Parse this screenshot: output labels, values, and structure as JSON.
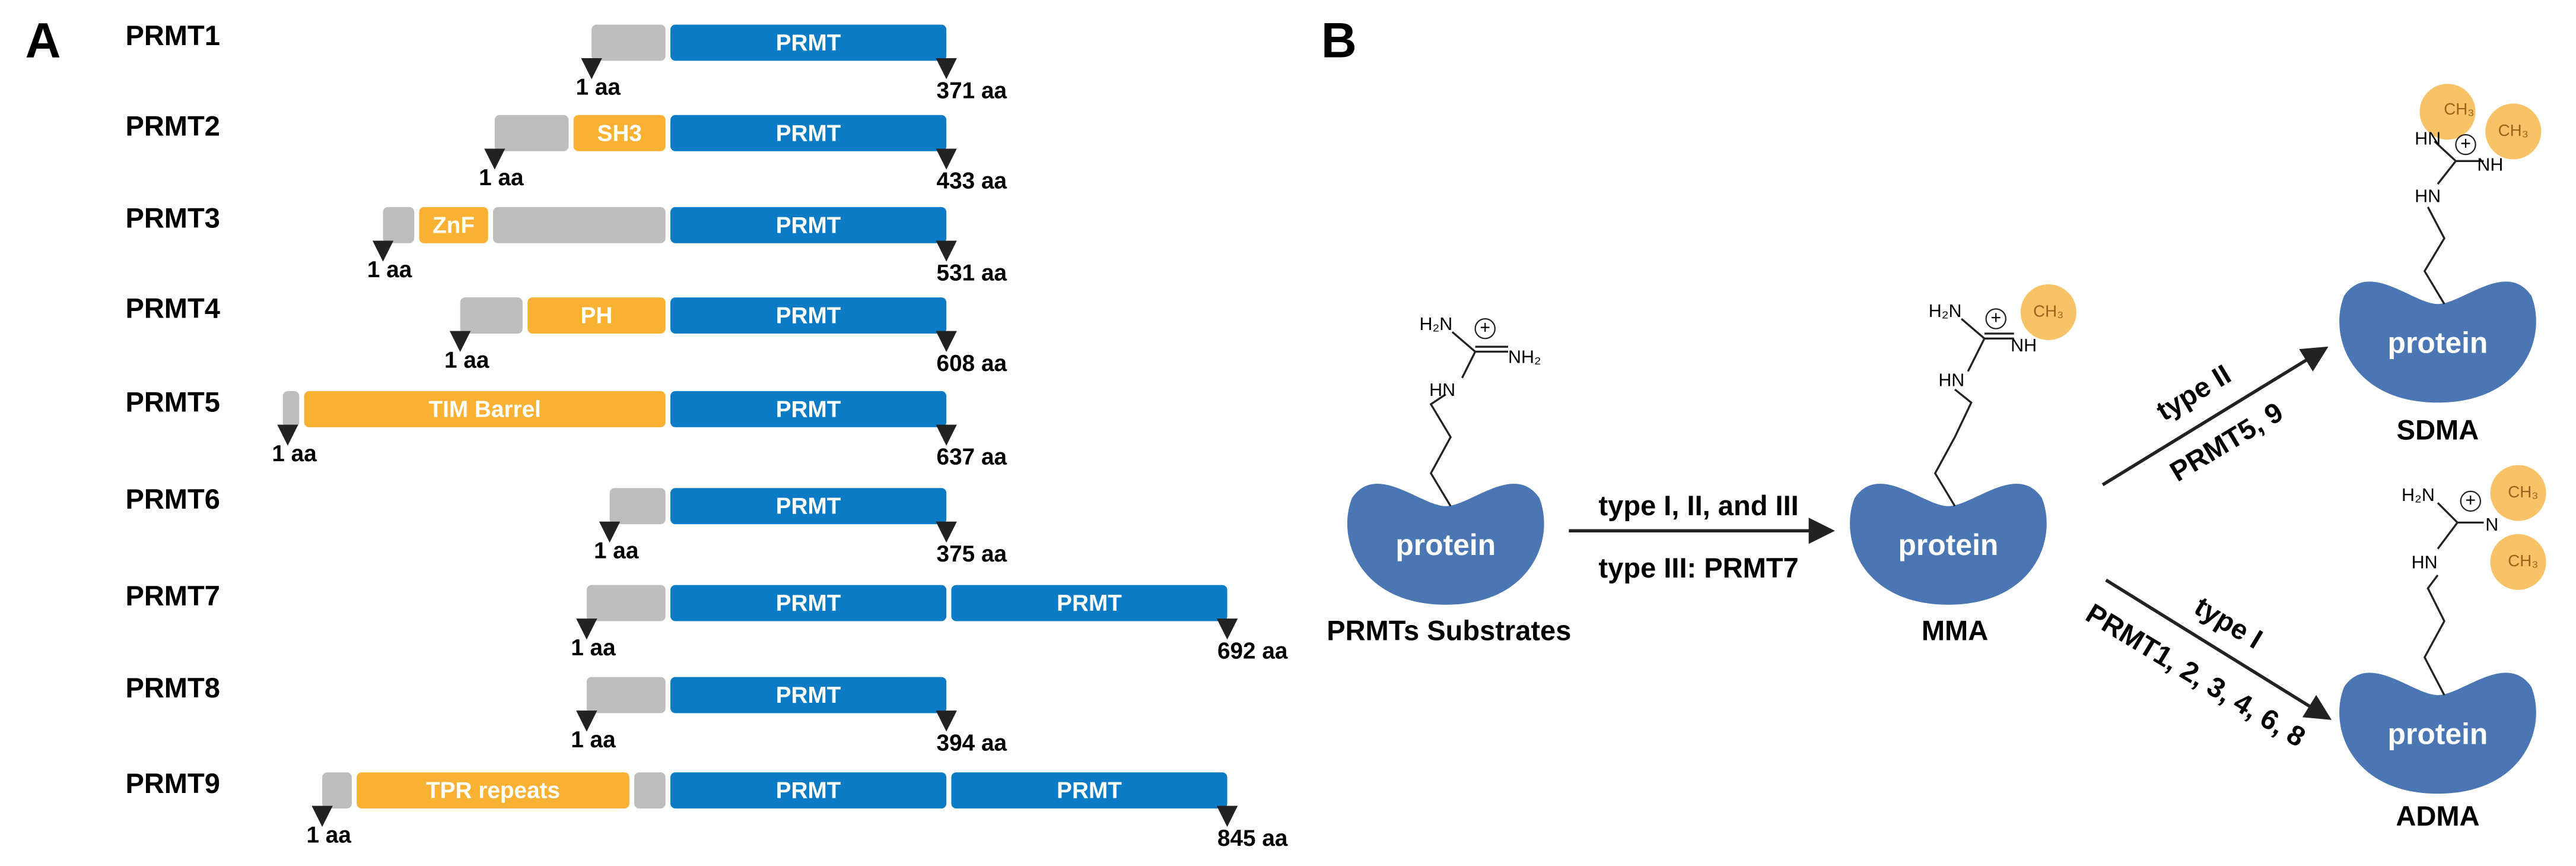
{
  "panel_a": {
    "label": "A",
    "proteins": [
      {
        "name": "PRMT1",
        "domains": [
          "PRMT"
        ],
        "start_label": "1 aa",
        "end_label": "371 aa"
      },
      {
        "name": "PRMT2",
        "domains": [
          "SH3",
          "PRMT"
        ],
        "start_label": "1 aa",
        "end_label": "433 aa"
      },
      {
        "name": "PRMT3",
        "domains": [
          "ZnF",
          "PRMT"
        ],
        "start_label": "1 aa",
        "end_label": "531 aa"
      },
      {
        "name": "PRMT4",
        "domains": [
          "PH",
          "PRMT"
        ],
        "start_label": "1 aa",
        "end_label": "608 aa"
      },
      {
        "name": "PRMT5",
        "domains": [
          "TIM Barrel",
          "PRMT"
        ],
        "start_label": "1 aa",
        "end_label": "637 aa"
      },
      {
        "name": "PRMT6",
        "domains": [
          "PRMT"
        ],
        "start_label": "1 aa",
        "end_label": "375 aa"
      },
      {
        "name": "PRMT7",
        "domains": [
          "PRMT",
          "PRMT"
        ],
        "start_label": "1 aa",
        "end_label": "692 aa"
      },
      {
        "name": "PRMT8",
        "domains": [
          "PRMT"
        ],
        "start_label": "1 aa",
        "end_label": "394 aa"
      },
      {
        "name": "PRMT9",
        "domains": [
          "TPR repeats",
          "PRMT",
          "PRMT"
        ],
        "start_label": "1 aa",
        "end_label": "845 aa"
      }
    ]
  },
  "panel_b": {
    "label": "B",
    "substrate": {
      "protein": "protein",
      "caption": "PRMTs Substrates",
      "h2n": "H₂N",
      "nh2": "NH₂",
      "hn": "HN",
      "plus": "+"
    },
    "step1": {
      "label": "type I, II, and III",
      "sublabel": "type III: PRMT7"
    },
    "mma": {
      "protein": "protein",
      "caption": "MMA",
      "h2n": "H₂N",
      "nh": "NH",
      "hn": "HN",
      "plus": "+",
      "ch3": "CH₃"
    },
    "step2": {
      "label": "type II",
      "sublabel": "PRMT5, 9"
    },
    "sdma": {
      "protein": "protein",
      "caption": "SDMA",
      "hn1": "HN",
      "nh": "NH",
      "hn2": "HN",
      "plus": "+",
      "ch3_1": "CH₃",
      "ch3_2": "CH₃"
    },
    "step3": {
      "label": "type I",
      "sublabel": "PRMT1, 2, 3, 4, 6, 8"
    },
    "adma": {
      "protein": "protein",
      "caption": "ADMA",
      "h2n": "H₂N",
      "n": "N",
      "hn": "HN",
      "plus": "+",
      "ch3_1": "CH₃",
      "ch3_2": "CH₃"
    }
  }
}
